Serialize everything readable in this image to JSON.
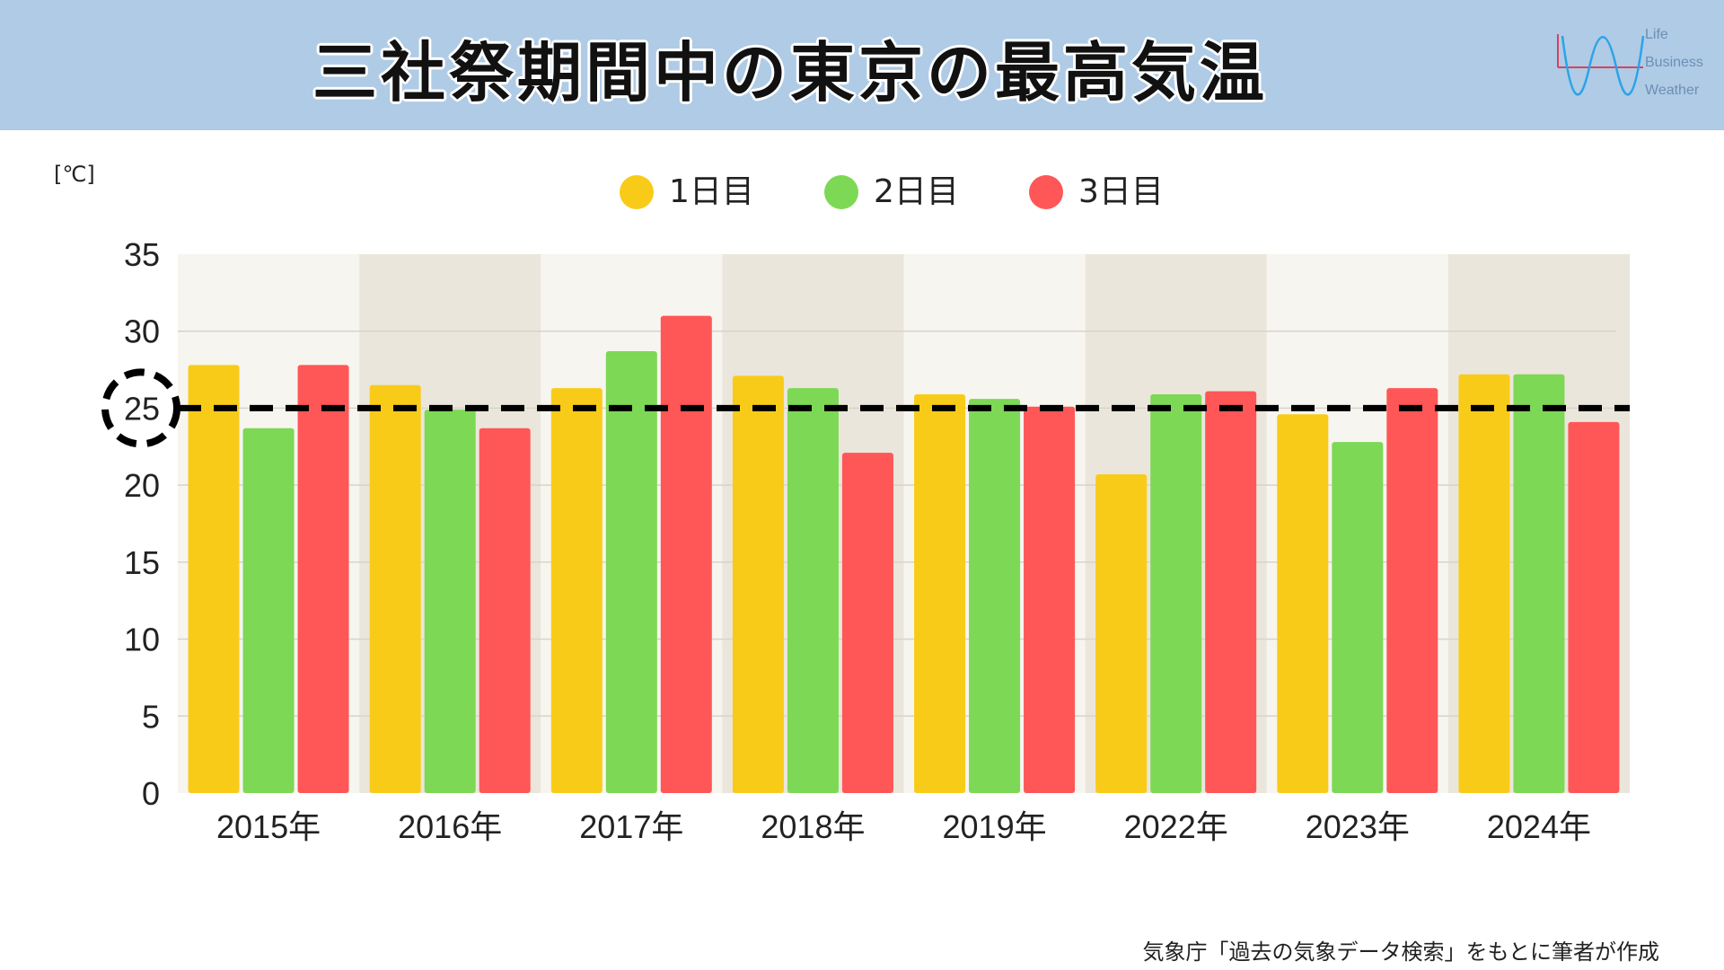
{
  "header": {
    "title": "三社祭期間中の東京の最高気温",
    "logo_lines": [
      "Life",
      "Business",
      "Weather"
    ]
  },
  "unit_label": "[℃]",
  "source_note": "気象庁「過去の気象データ検索」をもとに筆者が作成",
  "colors": {
    "header_bg": "#afcbe6",
    "day1": "#f9cb19",
    "day2": "#7dd855",
    "day3": "#ff5757",
    "band_light": "#f7f5ef",
    "band_dark": "#ebe6db",
    "reference_line": "#000000"
  },
  "chart_data": {
    "type": "bar",
    "categories": [
      "2015年",
      "2016年",
      "2017年",
      "2018年",
      "2019年",
      "2022年",
      "2023年",
      "2024年"
    ],
    "series": [
      {
        "name": "1日目",
        "color_key": "day1",
        "values": [
          27.8,
          26.5,
          26.3,
          27.1,
          25.9,
          20.7,
          24.6,
          27.2
        ]
      },
      {
        "name": "2日目",
        "color_key": "day2",
        "values": [
          23.7,
          24.9,
          28.7,
          26.3,
          25.6,
          25.9,
          22.8,
          27.2
        ]
      },
      {
        "name": "3日目",
        "color_key": "day3",
        "values": [
          27.8,
          23.7,
          31.0,
          22.1,
          25.1,
          26.1,
          26.3,
          24.1
        ]
      }
    ],
    "ylim": [
      0,
      35
    ],
    "yticks": [
      "0",
      "5",
      "10",
      "15",
      "20",
      "25",
      "30",
      "35"
    ],
    "reference_line": {
      "value": 25,
      "style": "dashed",
      "highlight_tick": "25"
    },
    "grid": true,
    "legend_position": "top-center"
  }
}
